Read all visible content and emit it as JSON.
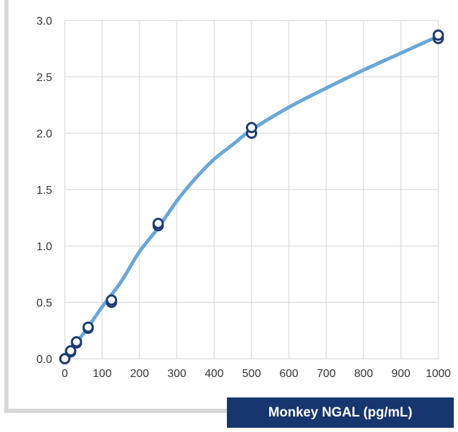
{
  "chart_data": {
    "type": "scatter",
    "title": "",
    "xlabel": "Monkey NGAL (pg/mL)",
    "ylabel": "",
    "xlim": [
      0,
      1000
    ],
    "ylim": [
      0,
      3.0
    ],
    "xticks": [
      "0",
      "100",
      "200",
      "300",
      "400",
      "500",
      "600",
      "700",
      "800",
      "900",
      "1000"
    ],
    "yticks": [
      "0.0",
      "0.5",
      "1.0",
      "1.5",
      "2.0",
      "2.5",
      "3.0"
    ],
    "grid": true,
    "legend": "none",
    "series": [
      {
        "kind": "points",
        "points": [
          [
            0,
            0.0
          ],
          [
            0,
            0.0
          ],
          [
            15.6,
            0.06
          ],
          [
            15.6,
            0.07
          ],
          [
            31.3,
            0.14
          ],
          [
            31.3,
            0.15
          ],
          [
            62.5,
            0.27
          ],
          [
            62.5,
            0.28
          ],
          [
            125,
            0.5
          ],
          [
            125,
            0.52
          ],
          [
            250,
            1.18
          ],
          [
            250,
            1.2
          ],
          [
            500,
            2.0
          ],
          [
            500,
            2.05
          ],
          [
            1000,
            2.84
          ],
          [
            1000,
            2.87
          ]
        ]
      },
      {
        "kind": "fit-curve",
        "points": [
          [
            0,
            -0.02
          ],
          [
            15.6,
            0.06
          ],
          [
            31.3,
            0.14
          ],
          [
            62.5,
            0.28
          ],
          [
            100,
            0.46
          ],
          [
            150,
            0.68
          ],
          [
            200,
            0.95
          ],
          [
            250,
            1.16
          ],
          [
            300,
            1.4
          ],
          [
            350,
            1.6
          ],
          [
            400,
            1.77
          ],
          [
            450,
            1.9
          ],
          [
            500,
            2.03
          ],
          [
            600,
            2.23
          ],
          [
            700,
            2.4
          ],
          [
            800,
            2.56
          ],
          [
            900,
            2.71
          ],
          [
            1000,
            2.86
          ]
        ]
      }
    ],
    "colors": {
      "curve": "#6aa6d8",
      "marker_stroke": "#1c3d73",
      "marker_fill": "#ffffff",
      "grid": "#d0d0d0",
      "xlabel_bg": "#17356e",
      "xlabel_text": "#ffffff"
    }
  }
}
